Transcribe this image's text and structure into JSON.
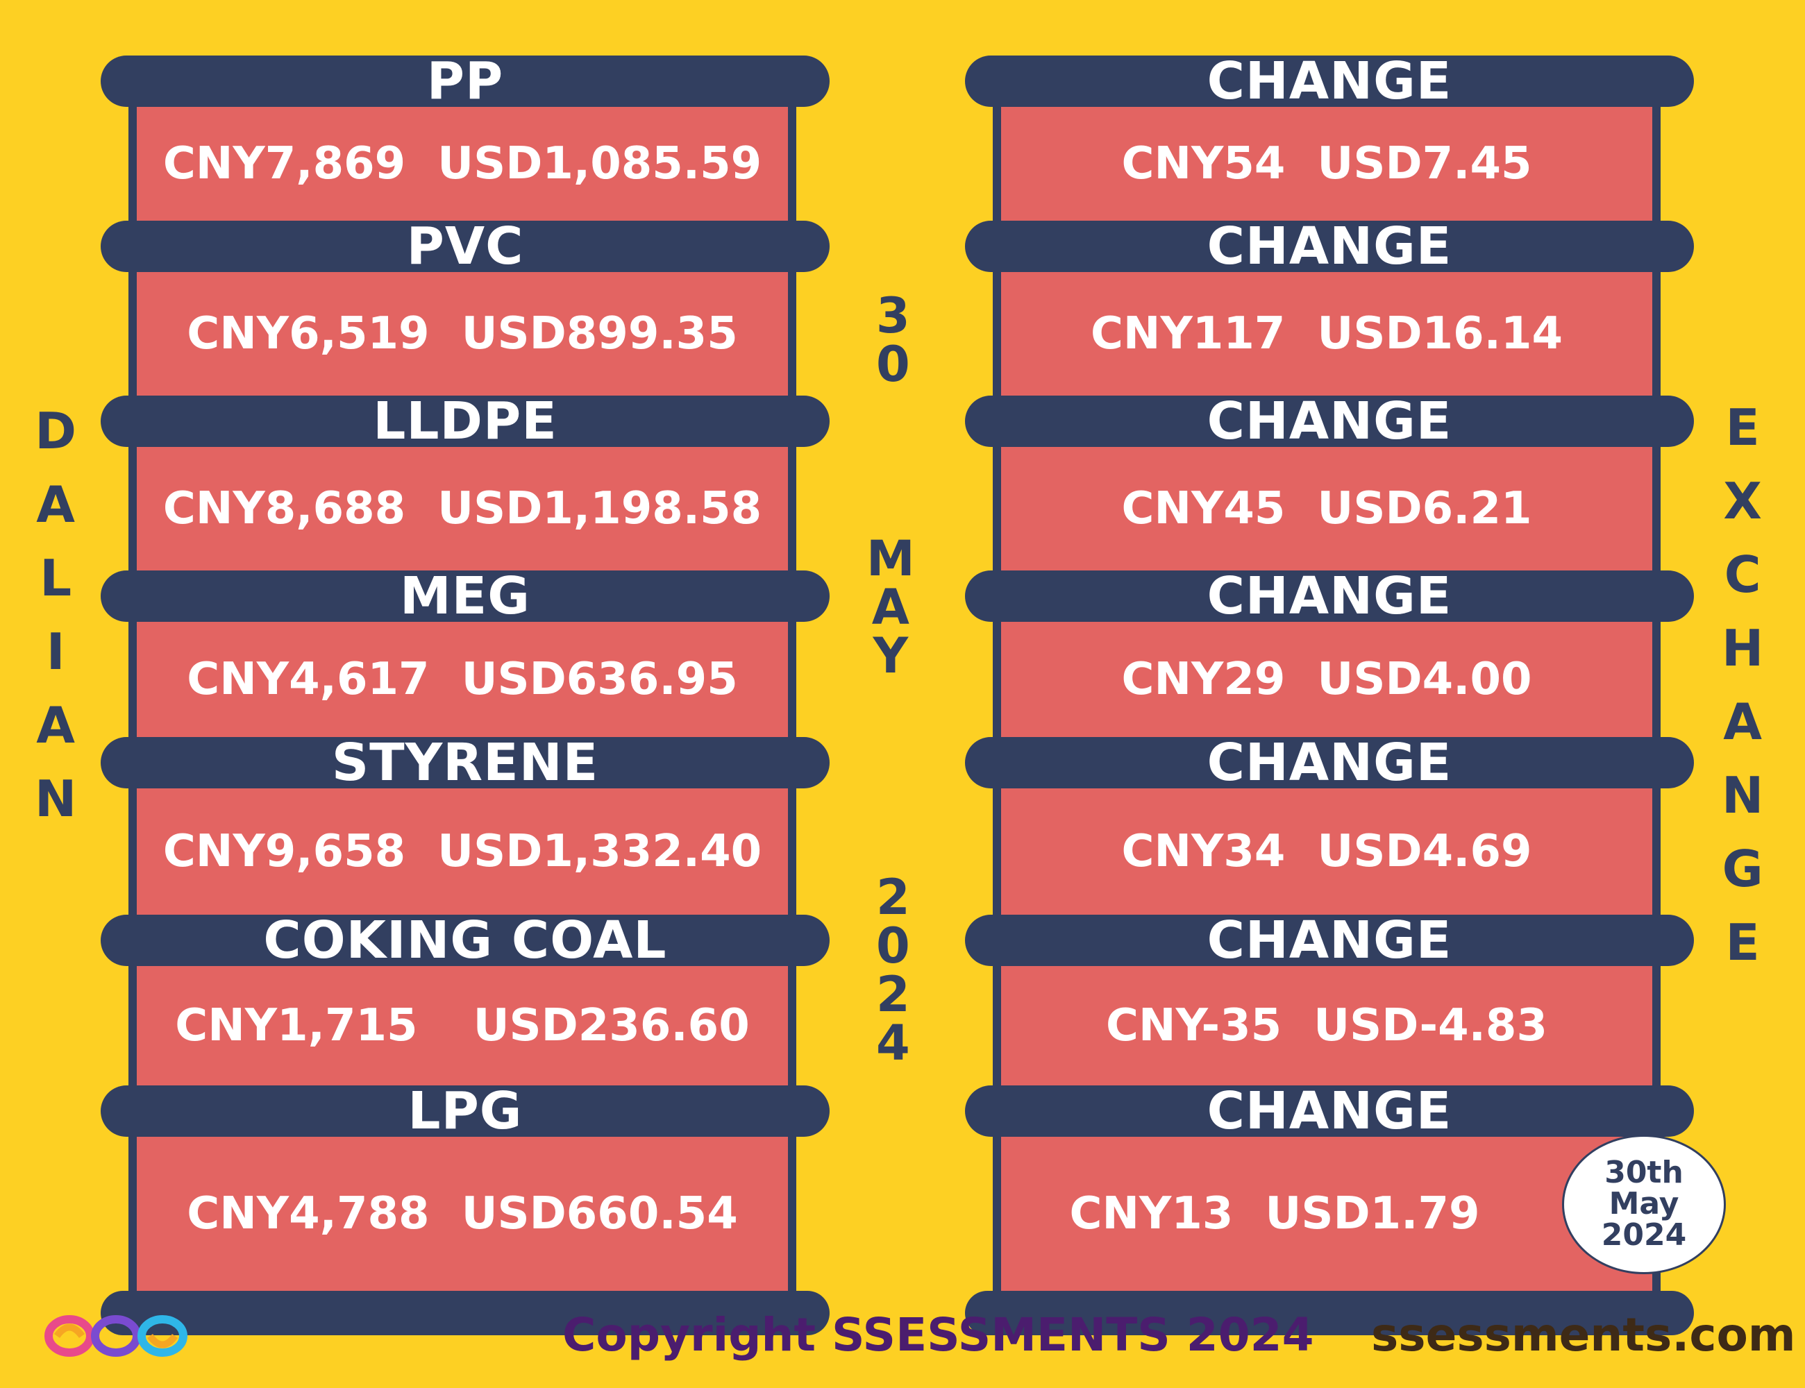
{
  "left_items": [
    {
      "label": "PP",
      "cny": "CNY7,869",
      "usd": "USD1,085.59"
    },
    {
      "label": "PVC",
      "cny": "CNY6,519",
      "usd": "USD899.35"
    },
    {
      "label": "LLDPE",
      "cny": "CNY8,688",
      "usd": "USD1,198.58"
    },
    {
      "label": "MEG",
      "cny": "CNY4,617",
      "usd": "USD636.95"
    },
    {
      "label": "STYRENE",
      "cny": "CNY9,658",
      "usd": "USD1,332.40"
    },
    {
      "label": "COKING COAL",
      "cny": "CNY1,715",
      "usd": "USD236.60"
    },
    {
      "label": "LPG",
      "cny": "CNY4,788",
      "usd": "USD660.54"
    }
  ],
  "right_items": [
    {
      "label": "CHANGE",
      "cny": "CNY54",
      "usd": "USD7.45"
    },
    {
      "label": "CHANGE",
      "cny": "CNY117",
      "usd": "USD16.14"
    },
    {
      "label": "CHANGE",
      "cny": "CNY45",
      "usd": "USD6.21"
    },
    {
      "label": "CHANGE",
      "cny": "CNY29",
      "usd": "USD4.00"
    },
    {
      "label": "CHANGE",
      "cny": "CNY34",
      "usd": "USD4.69"
    },
    {
      "label": "CHANGE",
      "cny": "CNY-35",
      "usd": "USD-4.83"
    },
    {
      "label": "CHANGE",
      "cny": "CNY13",
      "usd": "USD1.79"
    }
  ],
  "side_left": "DALIAN",
  "side_right": "EXCHANGE",
  "center_day": "30",
  "center_month": "MAY",
  "center_year": "2024",
  "badge": {
    "line1": "30th",
    "line2": "May",
    "line3": "2024"
  },
  "footer": {
    "copyright": "Copyright SSESSMENTS 2024",
    "site": "ssessments.com"
  },
  "icons": {
    "logo": "infinity-rings-logo-icon"
  },
  "colors": {
    "background": "#FDD023",
    "bar": "#323F60",
    "box": "#E36462",
    "text_light": "#FFFFFF",
    "footer_copyright": "#4B1D6E"
  }
}
